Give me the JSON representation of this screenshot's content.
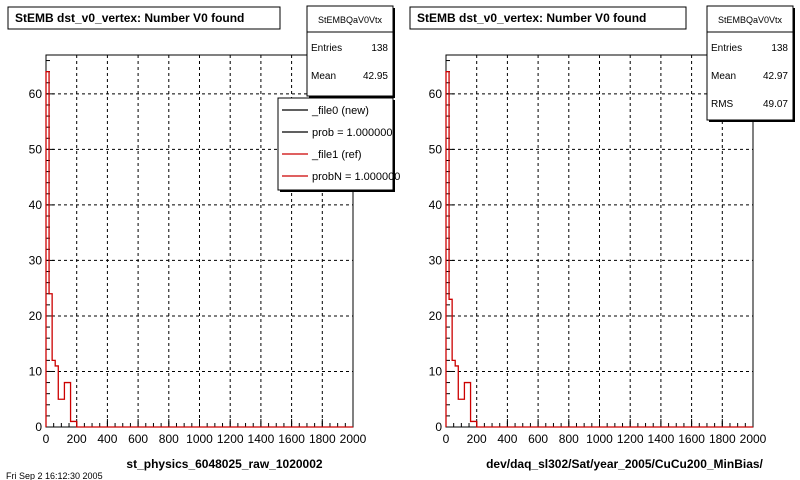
{
  "chart_data": [
    {
      "type": "step",
      "title": "StEMB dst_v0_vertex: Number V0 found",
      "xlabel": "st_physics_6048025_raw_1020002",
      "ylabel": "",
      "xlim": [
        0,
        2000
      ],
      "ylim": [
        0,
        67
      ],
      "grid": true,
      "x_ticks": [
        0,
        200,
        400,
        600,
        800,
        1000,
        1200,
        1400,
        1600,
        1800,
        2000
      ],
      "y_ticks": [
        0,
        10,
        20,
        30,
        40,
        50,
        60
      ],
      "stats": {
        "name": "StEMBQaV0Vtx",
        "rows": [
          {
            "label": "Entries",
            "value": "138"
          },
          {
            "label": "Mean",
            "value": "42.95"
          }
        ]
      },
      "legend": {
        "placement": "top-right",
        "entries": [
          {
            "label": "_file0 (new)",
            "color": "#000000"
          },
          {
            "label": "prob = 1.000000",
            "color": "#000000"
          },
          {
            "label": "_file1 (ref)",
            "color": "#cc0000"
          },
          {
            "label": "probN = 1.000000",
            "color": "#cc0000"
          }
        ]
      },
      "series": [
        {
          "color": "#cc0000",
          "points": [
            [
              0,
              64
            ],
            [
              20,
              24
            ],
            [
              40,
              12
            ],
            [
              60,
              11
            ],
            [
              80,
              5
            ],
            [
              120,
              8
            ],
            [
              160,
              1
            ],
            [
              200,
              0
            ],
            [
              2000,
              0
            ]
          ]
        }
      ]
    },
    {
      "type": "step",
      "title": "StEMB dst_v0_vertex: Number V0 found",
      "xlabel": "dev/daq_sl302/Sat/year_2005/CuCu200_MinBias/",
      "ylabel": "",
      "xlim": [
        0,
        2000
      ],
      "ylim": [
        0,
        67
      ],
      "grid": true,
      "x_ticks": [
        0,
        200,
        400,
        600,
        800,
        1000,
        1200,
        1400,
        1600,
        1800,
        2000
      ],
      "y_ticks": [
        0,
        10,
        20,
        30,
        40,
        50,
        60
      ],
      "stats": {
        "name": "StEMBQaV0Vtx",
        "rows": [
          {
            "label": "Entries",
            "value": "138"
          },
          {
            "label": "Mean",
            "value": "42.97"
          },
          {
            "label": "RMS",
            "value": "49.07"
          }
        ]
      },
      "series": [
        {
          "color": "#cc0000",
          "points": [
            [
              0,
              64
            ],
            [
              20,
              23
            ],
            [
              40,
              12
            ],
            [
              60,
              11
            ],
            [
              80,
              5
            ],
            [
              120,
              8
            ],
            [
              160,
              1
            ],
            [
              200,
              0
            ],
            [
              2000,
              0
            ]
          ]
        }
      ]
    }
  ],
  "footer_text": "Fri Sep 2 16:12:30 2005"
}
